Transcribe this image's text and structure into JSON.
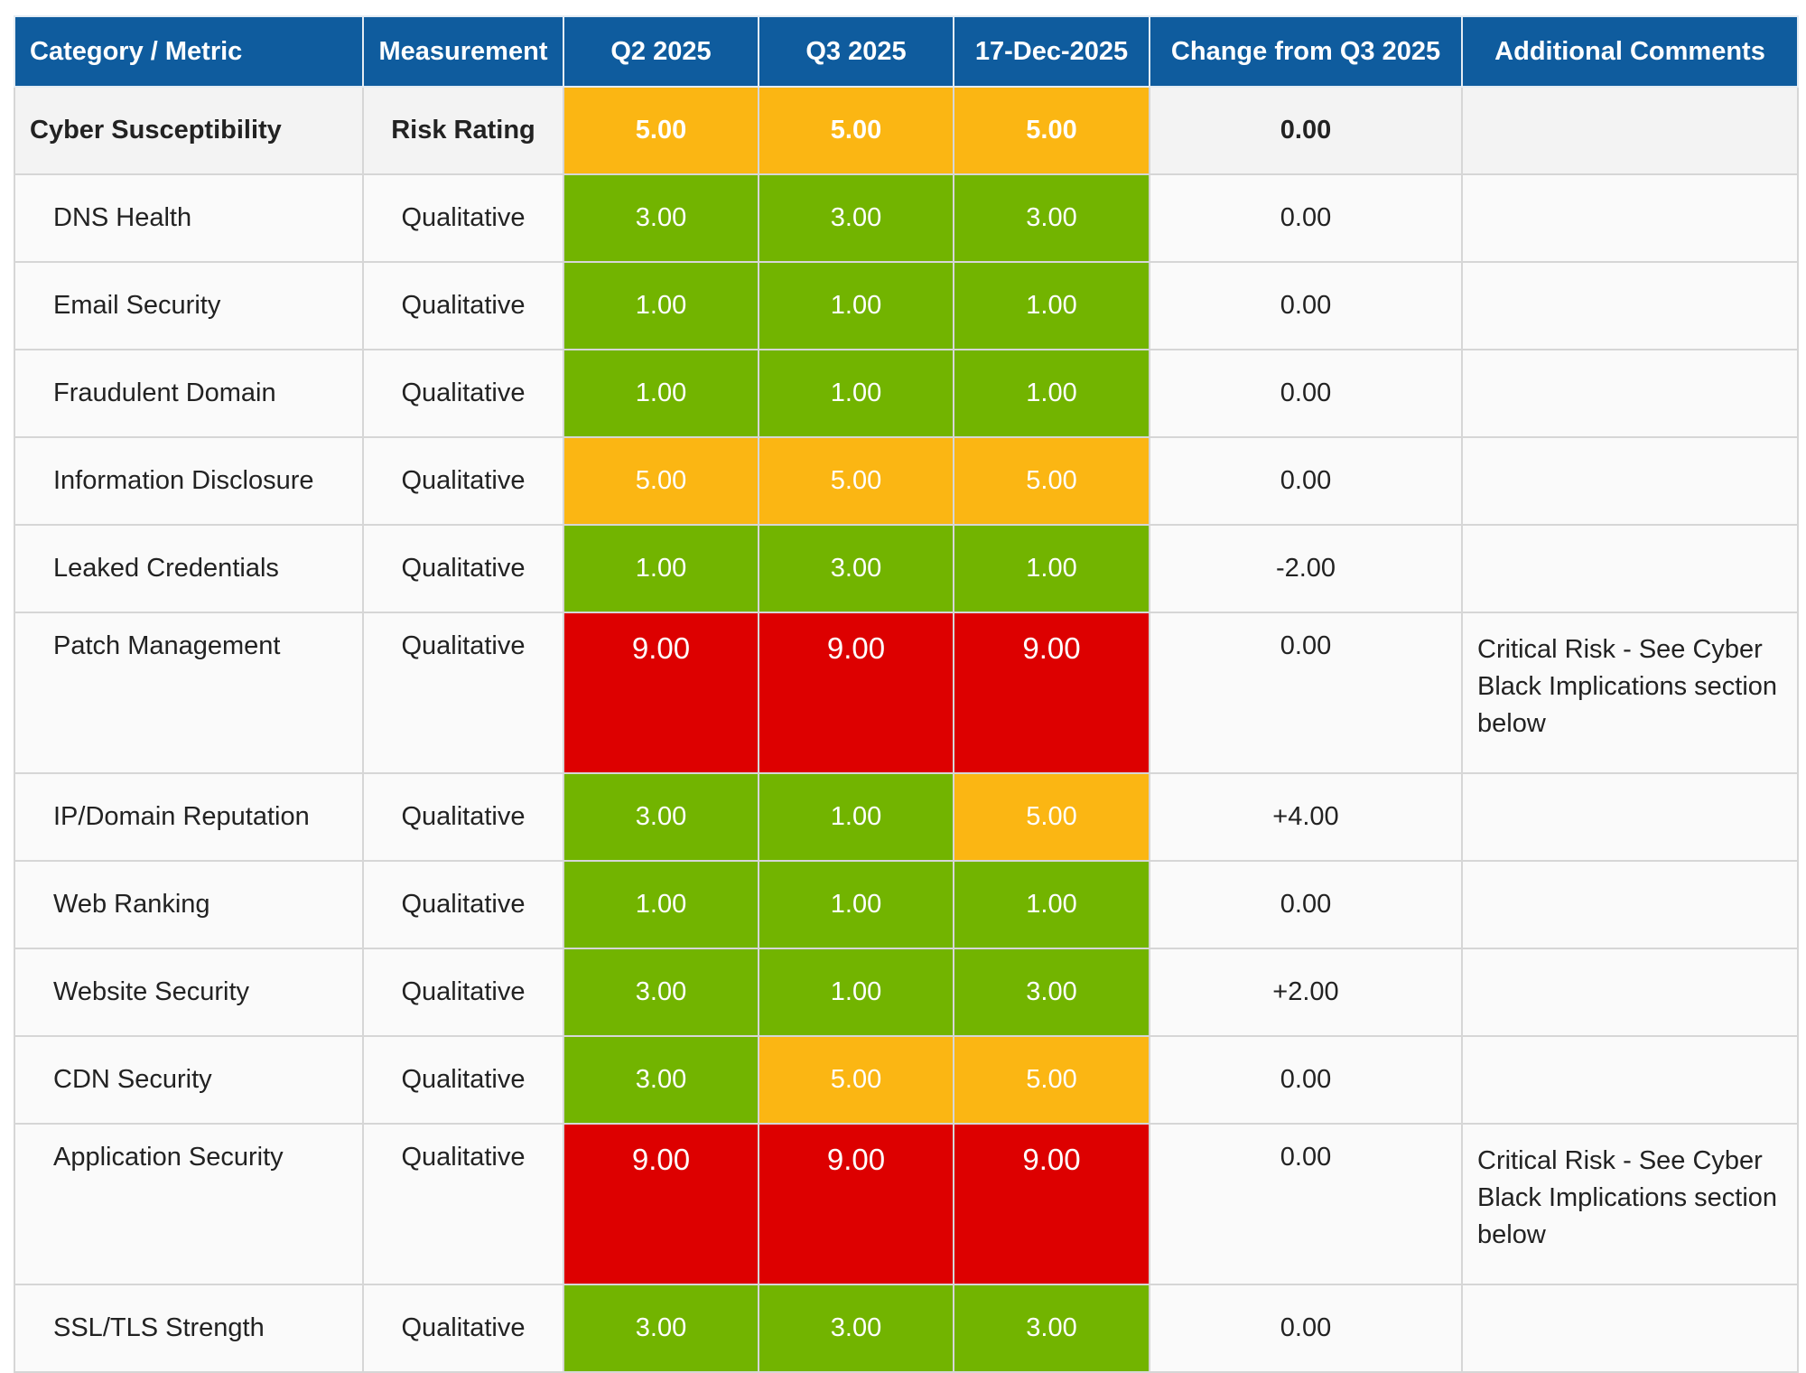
{
  "colors": {
    "header_bg": "#0f5c9e",
    "low": "#72b400",
    "medium": "#fbb613",
    "high": "#dd0000"
  },
  "headers": [
    "Category / Metric",
    "Measurement",
    "Q2 2025",
    "Q3 2025",
    "17-Dec-2025",
    "Change from Q3 2025",
    "Additional Comments"
  ],
  "summary": {
    "category": "Cyber Susceptibility",
    "measurement": "Risk Rating",
    "q2": "5.00",
    "q3": "5.00",
    "dec": "5.00",
    "change": "0.00",
    "comment": ""
  },
  "rows": [
    {
      "metric": "DNS Health",
      "measurement": "Qualitative",
      "q2": "3.00",
      "q3": "3.00",
      "dec": "3.00",
      "change": "0.00",
      "comment": ""
    },
    {
      "metric": "Email Security",
      "measurement": "Qualitative",
      "q2": "1.00",
      "q3": "1.00",
      "dec": "1.00",
      "change": "0.00",
      "comment": ""
    },
    {
      "metric": "Fraudulent Domain",
      "measurement": "Qualitative",
      "q2": "1.00",
      "q3": "1.00",
      "dec": "1.00",
      "change": "0.00",
      "comment": ""
    },
    {
      "metric": "Information Disclosure",
      "measurement": "Qualitative",
      "q2": "5.00",
      "q3": "5.00",
      "dec": "5.00",
      "change": "0.00",
      "comment": ""
    },
    {
      "metric": "Leaked Credentials",
      "measurement": "Qualitative",
      "q2": "1.00",
      "q3": "3.00",
      "dec": "1.00",
      "change": "-2.00",
      "comment": ""
    },
    {
      "metric": "Patch Management",
      "measurement": "Qualitative",
      "q2": "9.00",
      "q3": "9.00",
      "dec": "9.00",
      "change": "0.00",
      "comment": "Critical Risk - See Cyber Black Implications section below"
    },
    {
      "metric": "IP/Domain Reputation",
      "measurement": "Qualitative",
      "q2": "3.00",
      "q3": "1.00",
      "dec": "5.00",
      "change": "+4.00",
      "comment": ""
    },
    {
      "metric": "Web Ranking",
      "measurement": "Qualitative",
      "q2": "1.00",
      "q3": "1.00",
      "dec": "1.00",
      "change": "0.00",
      "comment": ""
    },
    {
      "metric": "Website Security",
      "measurement": "Qualitative",
      "q2": "3.00",
      "q3": "1.00",
      "dec": "3.00",
      "change": "+2.00",
      "comment": ""
    },
    {
      "metric": "CDN Security",
      "measurement": "Qualitative",
      "q2": "3.00",
      "q3": "5.00",
      "dec": "5.00",
      "change": "0.00",
      "comment": ""
    },
    {
      "metric": "Application Security",
      "measurement": "Qualitative",
      "q2": "9.00",
      "q3": "9.00",
      "dec": "9.00",
      "change": "0.00",
      "comment": "Critical Risk - See Cyber Black Implications section below"
    },
    {
      "metric": "SSL/TLS Strength",
      "measurement": "Qualitative",
      "q2": "3.00",
      "q3": "3.00",
      "dec": "3.00",
      "change": "0.00",
      "comment": ""
    }
  ]
}
